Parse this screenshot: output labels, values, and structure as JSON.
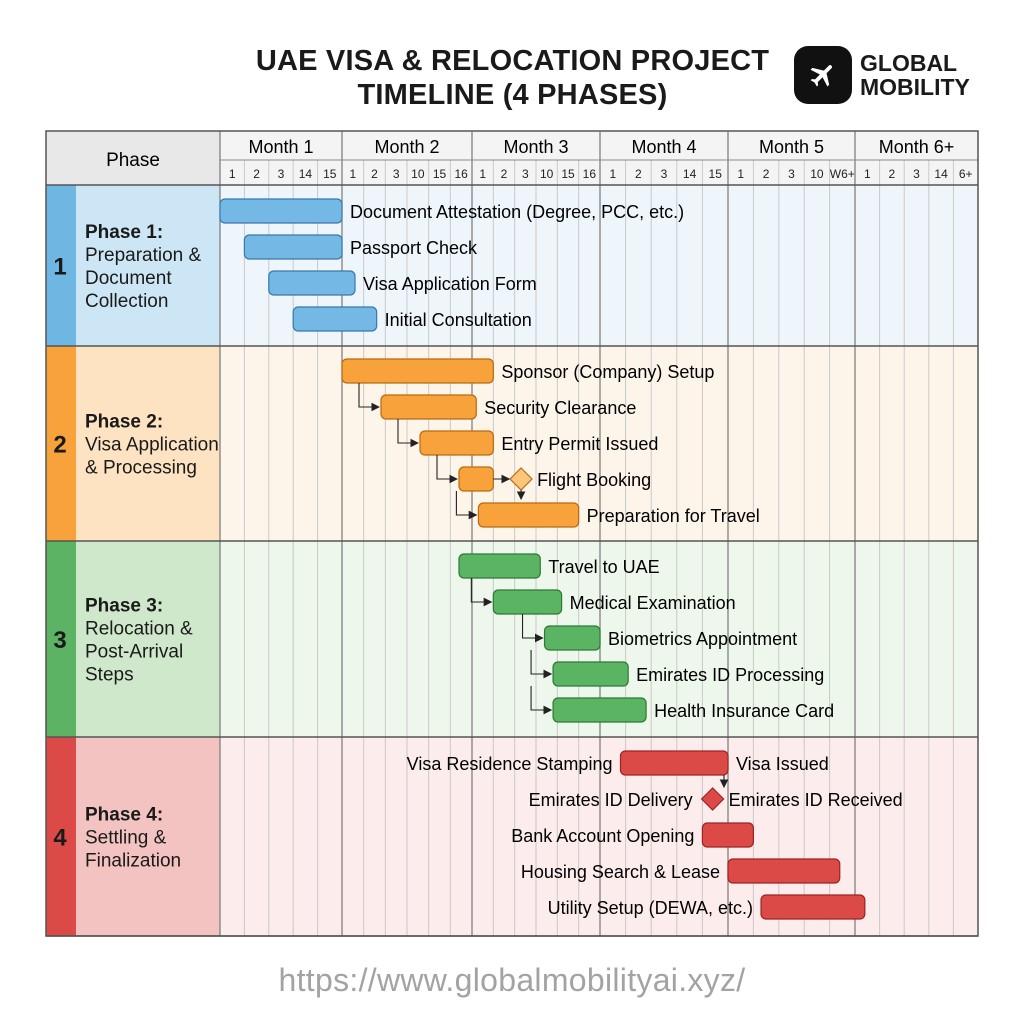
{
  "header": {
    "title_lines": [
      "UAE VISA & RELOCATION PROJECT",
      "TIMELINE (4 PHASES)"
    ],
    "logo_lines": [
      "GLOBAL",
      "MOBILITY"
    ],
    "logo_icon": "airplane-icon"
  },
  "table": {
    "phase_col_header": "Phase",
    "months": [
      {
        "label": "Month 1",
        "subs": [
          "1",
          "2",
          "3",
          "14",
          "15"
        ]
      },
      {
        "label": "Month 2",
        "subs": [
          "1",
          "2",
          "3",
          "10",
          "15",
          "16"
        ]
      },
      {
        "label": "Month 3",
        "subs": [
          "1",
          "2",
          "3",
          "10",
          "15",
          "16"
        ]
      },
      {
        "label": "Month 4",
        "subs": [
          "1",
          "2",
          "3",
          "14",
          "15"
        ]
      },
      {
        "label": "Month 5",
        "subs": [
          "1",
          "2",
          "3",
          "10",
          "W6+"
        ]
      },
      {
        "label": "Month 6+",
        "subs": [
          "1",
          "2",
          "3",
          "14",
          "6+"
        ]
      }
    ]
  },
  "phases": [
    {
      "number": "1",
      "title": "Phase 1:",
      "desc_lines": [
        "Preparation &",
        "Document",
        "Collection"
      ],
      "accent": "#6fb7e3",
      "fill": "#cde6f5",
      "row_bg": "#eef6fc",
      "bar": "#74b9e6",
      "bar_stroke": "#3a78a8"
    },
    {
      "number": "2",
      "title": "Phase 2:",
      "desc_lines": [
        "Visa Application",
        "& Processing"
      ],
      "accent": "#f7a23a",
      "fill": "#fde3c2",
      "row_bg": "#fef5ea",
      "bar": "#f7a23a",
      "bar_stroke": "#b86a10"
    },
    {
      "number": "3",
      "title": "Phase 3:",
      "desc_lines": [
        "Relocation &",
        "Post-Arrival",
        "Steps"
      ],
      "accent": "#5cb363",
      "fill": "#cfe8cc",
      "row_bg": "#eef7ec",
      "bar": "#5ab463",
      "bar_stroke": "#2c7a35"
    },
    {
      "number": "4",
      "title": "Phase 4:",
      "desc_lines": [
        "Settling &",
        "Finalization"
      ],
      "accent": "#dc4a48",
      "fill": "#f3c3c2",
      "row_bg": "#fcecec",
      "bar": "#dc4a48",
      "bar_stroke": "#9c2424"
    }
  ],
  "tasks": [
    {
      "phase": 0,
      "label": "Document Attestation (Degree, PCC, etc.)",
      "start": 0,
      "end": 5
    },
    {
      "phase": 0,
      "label": "Passport Check",
      "start": 1,
      "end": 5
    },
    {
      "phase": 0,
      "label": "Visa Application Form",
      "start": 2,
      "end": 5.6
    },
    {
      "phase": 0,
      "label": "Initial Consultation",
      "start": 3,
      "end": 6.6
    },
    {
      "phase": 1,
      "label": "Sponsor (Company) Setup",
      "start": 5,
      "end": 12
    },
    {
      "phase": 1,
      "label": "Security Clearance",
      "start": 6.8,
      "end": 11.2
    },
    {
      "phase": 1,
      "label": "Entry Permit Issued",
      "start": 8.6,
      "end": 12
    },
    {
      "phase": 1,
      "label": "Flight Booking",
      "start": 10.4,
      "end": 12,
      "milestone": 13.3
    },
    {
      "phase": 1,
      "label": "Preparation for Travel",
      "start": 11.3,
      "end": 16
    },
    {
      "phase": 2,
      "label": "Travel to UAE",
      "start": 10.4,
      "end": 14.2
    },
    {
      "phase": 2,
      "label": "Medical Examination",
      "start": 12,
      "end": 15.2
    },
    {
      "phase": 2,
      "label": "Biometrics Appointment",
      "start": 14.4,
      "end": 17
    },
    {
      "phase": 2,
      "label": "Emirates ID Processing",
      "start": 14.8,
      "end": 18.1
    },
    {
      "phase": 2,
      "label": "Health Insurance Card",
      "start": 14.8,
      "end": 18.8
    },
    {
      "phase": 3,
      "label": "Visa Residence Stamping",
      "label_left": true,
      "start": 17.8,
      "end": 22,
      "right_label": "Visa Issued"
    },
    {
      "phase": 3,
      "label": "Emirates ID Delivery",
      "label_left": true,
      "milestone": 21.4,
      "right_label": "Emirates ID Received"
    },
    {
      "phase": 3,
      "label": "Bank Account Opening",
      "label_left": true,
      "start": 21,
      "end": 23
    },
    {
      "phase": 3,
      "label": "Housing Search & Lease",
      "label_left": true,
      "start": 22,
      "end": 26.4
    },
    {
      "phase": 3,
      "label": "Utility Setup (DEWA, etc.)",
      "label_left": true,
      "start": 23.3,
      "end": 27.4
    }
  ],
  "footer": {
    "url": "https://www.globalmobilityai.xyz/"
  }
}
